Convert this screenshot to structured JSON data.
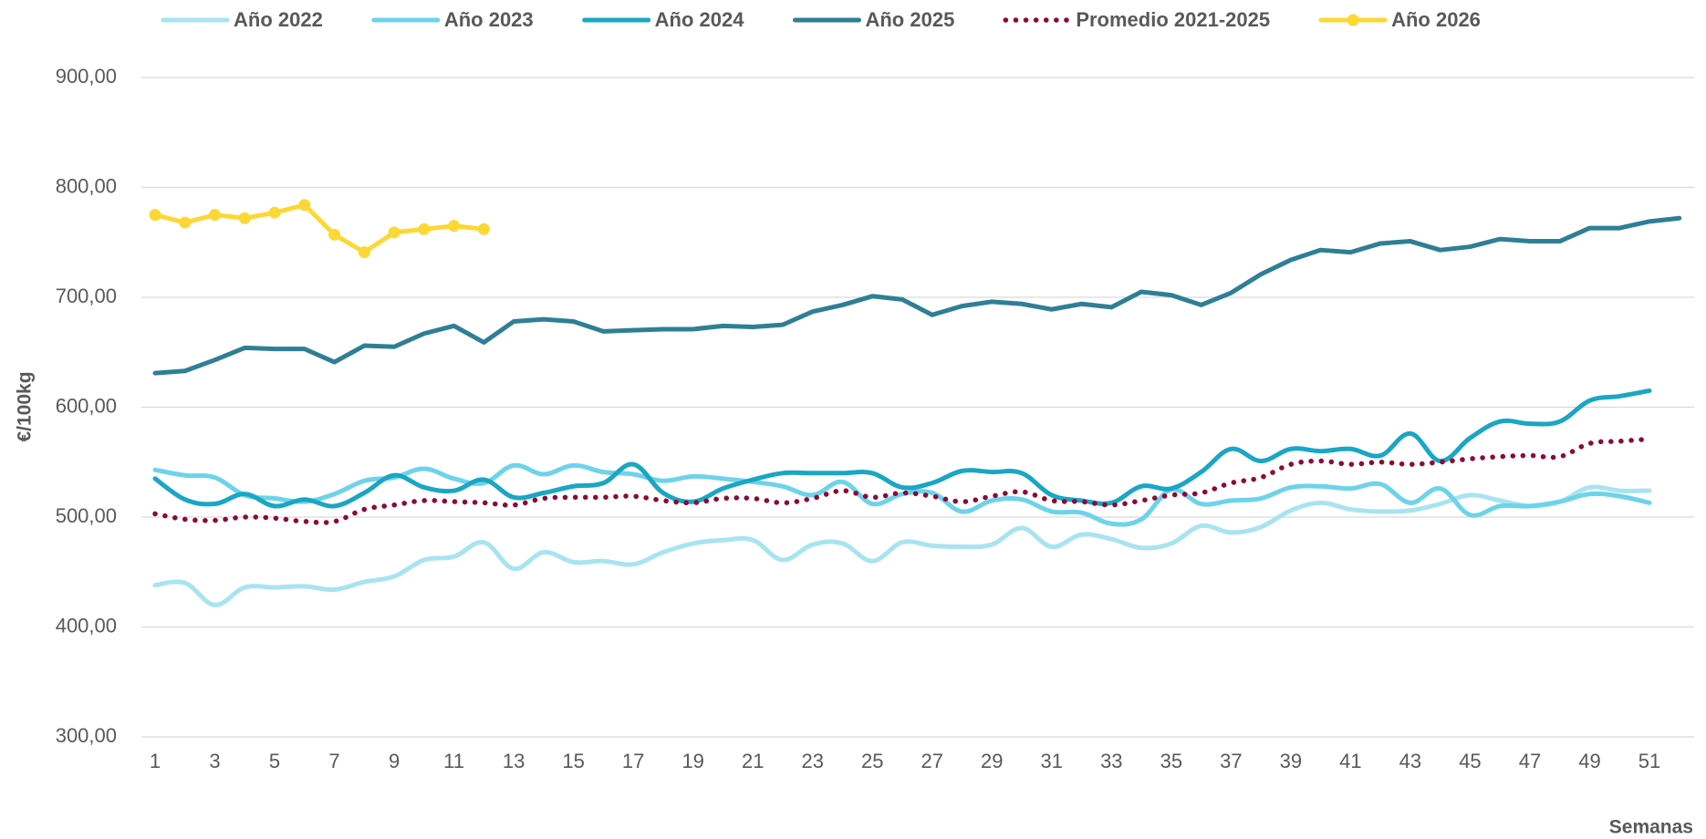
{
  "chart_data": {
    "type": "line",
    "x_label": "Semanas",
    "y_label": "€/100kg",
    "categories": [
      1,
      null,
      3,
      null,
      5,
      null,
      7,
      null,
      9,
      null,
      11,
      null,
      13,
      null,
      15,
      null,
      17,
      null,
      19,
      null,
      21,
      null,
      23,
      null,
      25,
      null,
      27,
      null,
      29,
      null,
      31,
      null,
      33,
      null,
      35,
      null,
      37,
      null,
      39,
      null,
      41,
      null,
      43,
      null,
      45,
      null,
      47,
      null,
      49,
      null,
      51,
      null
    ],
    "ylim": [
      300,
      900
    ],
    "yticks": [
      {
        "value": 300,
        "label": "300,00"
      },
      {
        "value": 400,
        "label": "400,00"
      },
      {
        "value": 500,
        "label": "500,00"
      },
      {
        "value": 600,
        "label": "600,00"
      },
      {
        "value": 700,
        "label": "700,00"
      },
      {
        "value": 800,
        "label": "800,00"
      },
      {
        "value": 900,
        "label": "900,00"
      }
    ],
    "grid": true,
    "legend": "top",
    "series": [
      {
        "name": "Año 2022",
        "color": "#a8e4f0",
        "smooth": true,
        "values": [
          438,
          440,
          420,
          436,
          436,
          437,
          434,
          441,
          446,
          461,
          464,
          477,
          453,
          468,
          459,
          460,
          457,
          468,
          476,
          479,
          479,
          461,
          475,
          476,
          460,
          477,
          474,
          473,
          475,
          490,
          473,
          484,
          480,
          472,
          476,
          492,
          486,
          491,
          506,
          513,
          507,
          505,
          506,
          512,
          520,
          515,
          510,
          514,
          527,
          524,
          524,
          null
        ]
      },
      {
        "name": "Año 2023",
        "color": "#6dd3ea",
        "smooth": true,
        "values": [
          543,
          538,
          536,
          520,
          517,
          514,
          521,
          533,
          536,
          544,
          535,
          531,
          547,
          539,
          547,
          541,
          539,
          533,
          537,
          535,
          532,
          528,
          520,
          532,
          512,
          521,
          522,
          505,
          515,
          516,
          505,
          504,
          494,
          498,
          525,
          512,
          515,
          517,
          527,
          528,
          526,
          530,
          513,
          526,
          502,
          510,
          510,
          514,
          521,
          519,
          513,
          null
        ]
      },
      {
        "name": "Año 2024",
        "color": "#1aa6c4",
        "smooth": true,
        "values": [
          535,
          516,
          512,
          521,
          510,
          516,
          510,
          522,
          538,
          527,
          524,
          534,
          518,
          522,
          528,
          531,
          548,
          522,
          514,
          526,
          534,
          540,
          540,
          540,
          540,
          527,
          531,
          542,
          541,
          540,
          520,
          515,
          513,
          528,
          526,
          541,
          562,
          551,
          562,
          560,
          562,
          556,
          576,
          551,
          572,
          587,
          585,
          587,
          606,
          610,
          615,
          null
        ]
      },
      {
        "name": "Año 2025",
        "color": "#2e7f96",
        "smooth": false,
        "values": [
          631,
          633,
          643,
          654,
          653,
          653,
          641,
          656,
          655,
          667,
          674,
          659,
          678,
          680,
          678,
          669,
          670,
          671,
          671,
          674,
          673,
          675,
          687,
          693,
          701,
          698,
          684,
          692,
          696,
          694,
          689,
          694,
          691,
          705,
          702,
          693,
          704,
          721,
          734,
          743,
          741,
          749,
          751,
          743,
          746,
          753,
          751,
          751,
          763,
          763,
          769,
          772
        ]
      },
      {
        "name": "Promedio 2021-2025",
        "color": "#8b0a3a",
        "smooth": true,
        "style": "dotted",
        "values": [
          503,
          498,
          497,
          500,
          499,
          496,
          496,
          507,
          511,
          515,
          514,
          513,
          511,
          517,
          518,
          518,
          519,
          515,
          513,
          517,
          517,
          513,
          517,
          524,
          518,
          522,
          519,
          514,
          519,
          523,
          515,
          514,
          511,
          515,
          520,
          522,
          531,
          536,
          548,
          551,
          548,
          550,
          548,
          550,
          553,
          555,
          556,
          555,
          567,
          569,
          571,
          null
        ]
      },
      {
        "name": "Año 2026",
        "color": "#fdd835",
        "smooth": false,
        "marker": "circle",
        "values": [
          775,
          768,
          775,
          772,
          777,
          784,
          757,
          741,
          759,
          762,
          765,
          762,
          null,
          null,
          null,
          null,
          null,
          null,
          null,
          null,
          null,
          null,
          null,
          null,
          null,
          null,
          null,
          null,
          null,
          null,
          null,
          null,
          null,
          null,
          null,
          null,
          null,
          null,
          null,
          null,
          null,
          null,
          null,
          null,
          null,
          null,
          null,
          null,
          null,
          null,
          null,
          null
        ]
      }
    ]
  }
}
